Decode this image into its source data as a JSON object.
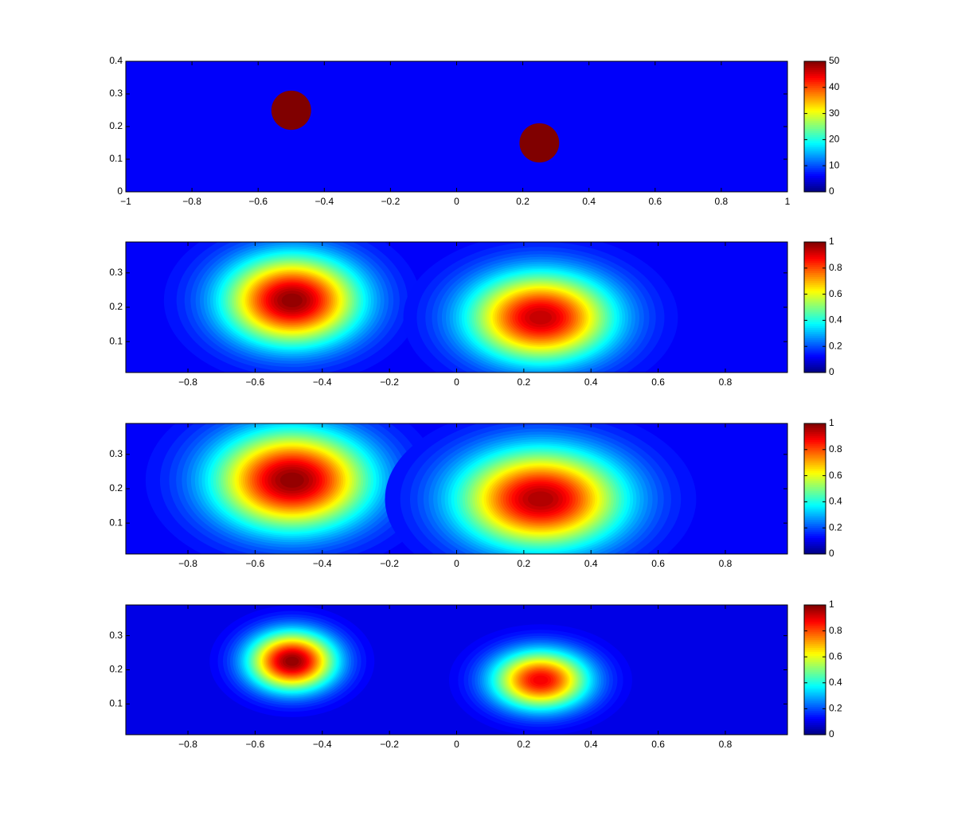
{
  "chart_data": [
    {
      "type": "heatmap",
      "blob": "disc",
      "xlim": [
        -1,
        1
      ],
      "ylim": [
        0,
        0.4
      ],
      "xticks": [
        {
          "value": -1,
          "label": "−1"
        },
        {
          "value": -0.8,
          "label": "−0.8"
        },
        {
          "value": -0.6,
          "label": "−0.6"
        },
        {
          "value": -0.4,
          "label": "−0.4"
        },
        {
          "value": -0.2,
          "label": "−0.2"
        },
        0,
        0.2,
        0.4,
        0.6,
        0.8,
        1
      ],
      "yticks": [
        0,
        0.1,
        0.2,
        0.3,
        0.4
      ],
      "clim": [
        0,
        50
      ],
      "cticks": [
        0,
        10,
        20,
        30,
        40,
        50
      ],
      "background": 6,
      "spots": [
        {
          "x": -0.5,
          "y": 0.25,
          "sx": 0.06,
          "sy": 0.06,
          "value": 50
        },
        {
          "x": 0.25,
          "y": 0.15,
          "sx": 0.06,
          "sy": 0.06,
          "value": 50
        }
      ]
    },
    {
      "type": "heatmap",
      "blob": "gaussian",
      "xlim": [
        -0.985,
        0.985
      ],
      "ylim": [
        0.01,
        0.39
      ],
      "xticks": [
        {
          "value": -0.8,
          "label": "−0.8"
        },
        {
          "value": -0.6,
          "label": "−0.6"
        },
        {
          "value": -0.4,
          "label": "−0.4"
        },
        {
          "value": -0.2,
          "label": "−0.2"
        },
        0,
        0.2,
        0.4,
        0.6,
        0.8
      ],
      "yticks": [
        0.1,
        0.2,
        0.3
      ],
      "clim": [
        0,
        1
      ],
      "cticks": [
        0,
        0.2,
        0.4,
        0.6,
        0.8,
        1
      ],
      "background": 0.12,
      "spots": [
        {
          "x": -0.49,
          "y": 0.22,
          "sx": 0.14,
          "sy": 0.09,
          "value": 1
        },
        {
          "x": 0.25,
          "y": 0.17,
          "sx": 0.15,
          "sy": 0.09,
          "value": 0.95
        }
      ]
    },
    {
      "type": "heatmap",
      "blob": "gaussian",
      "xlim": [
        -0.985,
        0.985
      ],
      "ylim": [
        0.01,
        0.39
      ],
      "xticks": [
        {
          "value": -0.8,
          "label": "−0.8"
        },
        {
          "value": -0.6,
          "label": "−0.6"
        },
        {
          "value": -0.4,
          "label": "−0.4"
        },
        {
          "value": -0.2,
          "label": "−0.2"
        },
        0,
        0.2,
        0.4,
        0.6,
        0.8
      ],
      "yticks": [
        0.1,
        0.2,
        0.3
      ],
      "clim": [
        0,
        1
      ],
      "cticks": [
        0,
        0.2,
        0.4,
        0.6,
        0.8,
        1
      ],
      "background": 0.12,
      "spots": [
        {
          "x": -0.49,
          "y": 0.225,
          "sx": 0.16,
          "sy": 0.1,
          "value": 1
        },
        {
          "x": 0.25,
          "y": 0.17,
          "sx": 0.17,
          "sy": 0.1,
          "value": 0.97
        }
      ]
    },
    {
      "type": "heatmap",
      "blob": "gaussian",
      "xlim": [
        -0.985,
        0.985
      ],
      "ylim": [
        0.01,
        0.39
      ],
      "xticks": [
        {
          "value": -0.8,
          "label": "−0.8"
        },
        {
          "value": -0.6,
          "label": "−0.6"
        },
        {
          "value": -0.4,
          "label": "−0.4"
        },
        {
          "value": -0.2,
          "label": "−0.2"
        },
        0,
        0.2,
        0.4,
        0.6,
        0.8
      ],
      "yticks": [
        0.1,
        0.2,
        0.3
      ],
      "clim": [
        0,
        1
      ],
      "cticks": [
        0,
        0.2,
        0.4,
        0.6,
        0.8,
        1
      ],
      "background": 0.1,
      "spots": [
        {
          "x": -0.49,
          "y": 0.225,
          "sx": 0.09,
          "sy": 0.06,
          "value": 1
        },
        {
          "x": 0.25,
          "y": 0.17,
          "sx": 0.1,
          "sy": 0.06,
          "value": 0.9
        }
      ]
    }
  ]
}
